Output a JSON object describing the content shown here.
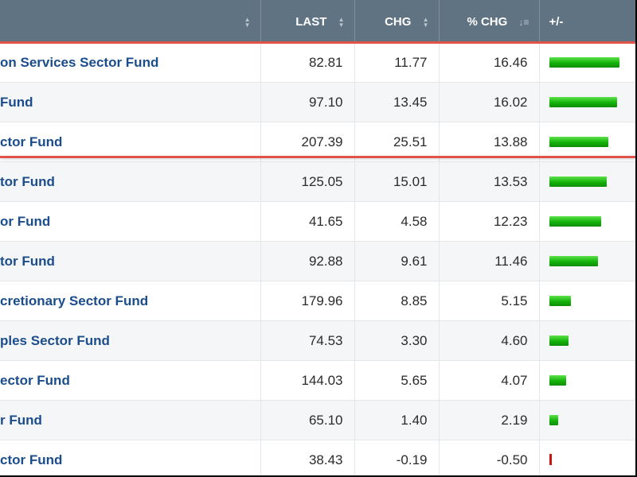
{
  "header": {
    "name_col": "",
    "last": "LAST",
    "chg": "CHG",
    "pct_chg": "% CHG",
    "bar": "+/-"
  },
  "rows": [
    {
      "name": "on Services Sector Fund",
      "last": "82.81",
      "chg": "11.77",
      "pct": "16.46",
      "pct_value": 16.46
    },
    {
      "name": "Fund",
      "last": "97.10",
      "chg": "13.45",
      "pct": "16.02",
      "pct_value": 16.02
    },
    {
      "name": "ctor Fund",
      "last": "207.39",
      "chg": "25.51",
      "pct": "13.88",
      "pct_value": 13.88
    },
    {
      "name": "tor Fund",
      "last": "125.05",
      "chg": "15.01",
      "pct": "13.53",
      "pct_value": 13.53
    },
    {
      "name": "or Fund",
      "last": "41.65",
      "chg": "4.58",
      "pct": "12.23",
      "pct_value": 12.23
    },
    {
      "name": "tor Fund",
      "last": "92.88",
      "chg": "9.61",
      "pct": "11.46",
      "pct_value": 11.46
    },
    {
      "name": "cretionary Sector Fund",
      "last": "179.96",
      "chg": "8.85",
      "pct": "5.15",
      "pct_value": 5.15
    },
    {
      "name": "ples Sector Fund",
      "last": "74.53",
      "chg": "3.30",
      "pct": "4.60",
      "pct_value": 4.6
    },
    {
      "name": "ector Fund",
      "last": "144.03",
      "chg": "5.65",
      "pct": "4.07",
      "pct_value": 4.07
    },
    {
      "name": "r Fund",
      "last": "65.10",
      "chg": "1.40",
      "pct": "2.19",
      "pct_value": 2.19
    },
    {
      "name": "ctor Fund",
      "last": "38.43",
      "chg": "-0.19",
      "pct": "-0.50",
      "pct_value": -0.5
    }
  ],
  "bar_scale_max": 16.46,
  "colors": {
    "header_bg": "#5f7382",
    "link": "#1b4d8c",
    "positive_bar": "#14b20a",
    "negative_bar": "#cc1414",
    "highlight": "#e0534a"
  },
  "icons": {
    "sort_updown": "sort-updown-icon",
    "sort_desc": "sort-descending-icon"
  }
}
